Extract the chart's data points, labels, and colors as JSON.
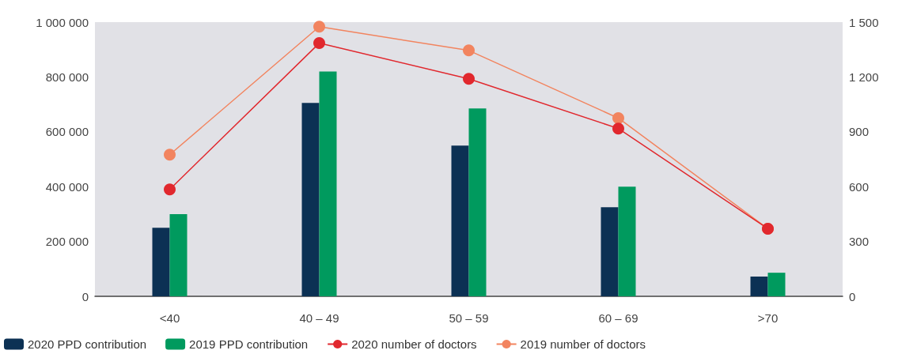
{
  "chart_data": {
    "type": "bar",
    "categories": [
      "<40",
      "40 – 49",
      "50 – 59",
      "60 – 69",
      ">70"
    ],
    "series": [
      {
        "name": "2020 PPD contribution",
        "color": "#0c3154",
        "values": [
          250000,
          705000,
          550000,
          325000,
          72000
        ]
      },
      {
        "name": "2019 PPD contribution",
        "color": "#009a5e",
        "values": [
          300000,
          820000,
          685000,
          400000,
          86000
        ]
      },
      {
        "name": "2020 number of doctors",
        "type": "line",
        "axis": "y2",
        "color": "#e1282e",
        "values": [
          585,
          1385,
          1190,
          918,
          370
        ]
      },
      {
        "name": "2019 number of doctors",
        "type": "line",
        "axis": "y2",
        "color": "#f2845f",
        "values": [
          775,
          1475,
          1345,
          975,
          370
        ]
      }
    ],
    "ylim": [
      0,
      1000000
    ],
    "yticks": [
      0,
      {
        "value": 200000,
        "label": "200 000"
      },
      {
        "value": 400000,
        "label": "400 000"
      },
      {
        "value": 600000,
        "label": "600 000"
      },
      {
        "value": 800000,
        "label": "800 000"
      },
      {
        "value": 1000000,
        "label": "1 000 000"
      }
    ],
    "y2lim": [
      0,
      1500
    ],
    "y2ticks": [
      0,
      300,
      600,
      900,
      {
        "value": 1200,
        "label": "1 200"
      },
      {
        "value": 1500,
        "label": "1 500"
      }
    ],
    "bands": [
      {
        "axis": "x",
        "from": "<40",
        "to": "<40",
        "color": "#e1e1e6"
      },
      {
        "axis": "x",
        "from": "40 – 49",
        "to": "40 – 49",
        "color": "#e1e1e6"
      },
      {
        "axis": "x",
        "from": "50 – 59",
        "to": "50 – 59",
        "color": "#e1e1e6"
      },
      {
        "axis": "x",
        "from": "60 – 69",
        "to": "60 – 69",
        "color": "#e1e1e6"
      },
      {
        "axis": "x",
        "from": ">70",
        "to": ">70",
        "color": "#e1e1e6"
      }
    ],
    "marker": "circle",
    "grid": false,
    "legend": "bottom left"
  }
}
